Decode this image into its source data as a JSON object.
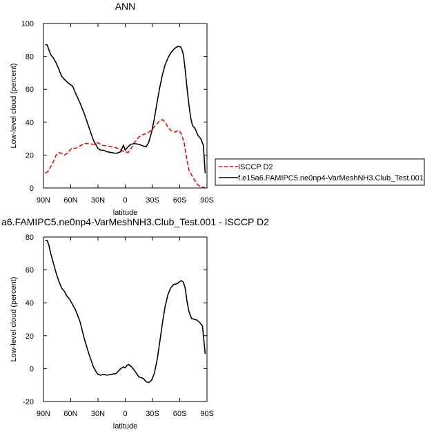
{
  "chart_data": [
    {
      "type": "line",
      "title": "ANN",
      "xlabel": "latitude",
      "ylabel": "Low-level cloud (percent)",
      "xlim": [
        -90,
        90
      ],
      "ylim": [
        0,
        100
      ],
      "x_ticks": [
        {
          "value": -90,
          "label": "90N"
        },
        {
          "value": -60,
          "label": "60N"
        },
        {
          "value": -30,
          "label": "30N"
        },
        {
          "value": 0,
          "label": "0"
        },
        {
          "value": 30,
          "label": "30S"
        },
        {
          "value": 60,
          "label": "60S"
        },
        {
          "value": 90,
          "label": "90S"
        }
      ],
      "y_ticks": [
        0,
        20,
        40,
        60,
        80,
        100
      ],
      "legend": {
        "position": "right"
      },
      "series": [
        {
          "name": "ISCCP D2",
          "color": "#ff0000",
          "style": "dashed",
          "x": [
            -88,
            -85,
            -82,
            -79,
            -76,
            -73,
            -70,
            -67,
            -64,
            -61,
            -58,
            -55,
            -50,
            -45,
            -40,
            -35,
            -30,
            -25,
            -20,
            -15,
            -10,
            -5,
            0,
            3,
            6,
            10,
            15,
            20,
            25,
            30,
            35,
            38,
            41,
            44,
            47,
            50,
            55,
            58,
            60,
            62,
            65,
            68,
            70,
            73,
            76,
            79,
            82,
            85,
            88
          ],
          "y": [
            9,
            10,
            13,
            16,
            20,
            21.5,
            21,
            20,
            21,
            23,
            24.5,
            24,
            25.5,
            27,
            27,
            26.5,
            27.5,
            26,
            25.5,
            25,
            24.5,
            23,
            22,
            21.5,
            23.5,
            27.5,
            31,
            32.5,
            33.5,
            36,
            39,
            41,
            41.5,
            40,
            37,
            35,
            34,
            35,
            34.5,
            32.5,
            27,
            17,
            11,
            8,
            5,
            2.5,
            1,
            0.5,
            0
          ]
        },
        {
          "name": "f.e15a6.FAMIPC5.ne0np4-VarMeshNH3.Club_Test.001",
          "color": "#000000",
          "style": "solid",
          "x": [
            -88,
            -86,
            -84,
            -82,
            -79,
            -76,
            -73,
            -70,
            -67,
            -64,
            -61,
            -58,
            -55,
            -50,
            -45,
            -40,
            -35,
            -30,
            -27,
            -24,
            -20,
            -15,
            -10,
            -5,
            -2,
            0,
            3,
            6,
            10,
            15,
            20,
            23,
            26,
            29,
            32,
            35,
            38,
            41,
            44,
            47,
            50,
            53,
            56,
            58,
            60,
            62,
            64,
            66,
            68,
            70,
            72,
            74,
            77,
            80,
            83,
            86,
            88
          ],
          "y": [
            87,
            87,
            84,
            81,
            79,
            76,
            72,
            68,
            66,
            64.5,
            63,
            62,
            58,
            52,
            45,
            37,
            29,
            24,
            23,
            23,
            22,
            21.5,
            21,
            22,
            26,
            23,
            25,
            26.5,
            27,
            26.5,
            25.5,
            25,
            28,
            34,
            42,
            52,
            61,
            69,
            75,
            79,
            82,
            84,
            85.5,
            86,
            86,
            85,
            81,
            72,
            61,
            51,
            43,
            38,
            36,
            32,
            30,
            26,
            9
          ]
        }
      ]
    },
    {
      "type": "line",
      "title": "a6.FAMIPC5.ne0np4-VarMeshNH3.Club_Test.001 - ISCCP D2",
      "xlabel": "latitude",
      "ylabel": "Low-level cloud (percent)",
      "xlim": [
        -90,
        90
      ],
      "ylim": [
        -20,
        80
      ],
      "x_ticks": [
        {
          "value": -90,
          "label": "90N"
        },
        {
          "value": -60,
          "label": "60N"
        },
        {
          "value": -30,
          "label": "30N"
        },
        {
          "value": 0,
          "label": "0"
        },
        {
          "value": 30,
          "label": "30S"
        },
        {
          "value": 60,
          "label": "60S"
        },
        {
          "value": 90,
          "label": "90S"
        }
      ],
      "y_ticks": [
        -20,
        0,
        20,
        40,
        60,
        80
      ],
      "series": [
        {
          "color": "#000000",
          "style": "solid",
          "x": [
            -88,
            -86,
            -84,
            -82,
            -79,
            -76,
            -73,
            -70,
            -67,
            -64,
            -61,
            -58,
            -55,
            -50,
            -45,
            -40,
            -35,
            -32,
            -30,
            -27,
            -24,
            -20,
            -15,
            -10,
            -5,
            -2,
            0,
            2,
            4,
            7,
            10,
            15,
            20,
            23,
            26,
            29,
            32,
            35,
            38,
            41,
            44,
            47,
            50,
            53,
            56,
            58,
            60,
            62,
            64,
            66,
            68,
            70,
            73,
            76,
            79,
            82,
            85,
            88
          ],
          "y": [
            78,
            78,
            75,
            70,
            64,
            58,
            53,
            49,
            47,
            44,
            42,
            39,
            36,
            29,
            18,
            9,
            1,
            -2,
            -3.5,
            -4,
            -3.5,
            -4,
            -3.5,
            -3,
            0,
            1,
            0.5,
            2,
            2.5,
            1,
            -1,
            -5,
            -6,
            -8,
            -8.5,
            -7,
            -3,
            5,
            16,
            28,
            38,
            45,
            49,
            51,
            51.5,
            52,
            53,
            53.5,
            52.5,
            49,
            41,
            35,
            30.5,
            30,
            29.5,
            28,
            26,
            9
          ]
        }
      ]
    }
  ]
}
